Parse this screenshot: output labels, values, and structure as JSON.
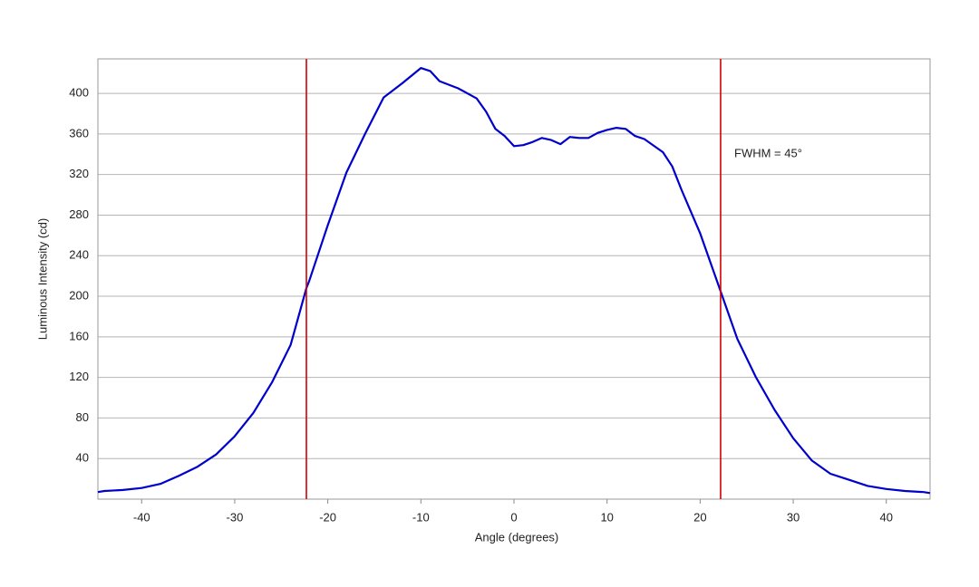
{
  "chart_data": {
    "type": "line",
    "x_label": "Angle (degrees)",
    "y_label": "Luminous Intensity (cd)",
    "x": [
      -44.7,
      -44,
      -42,
      -40,
      -38,
      -36,
      -34,
      -32,
      -30,
      -28,
      -26,
      -24,
      -22.3,
      -22,
      -20,
      -18,
      -16,
      -14,
      -12,
      -10,
      -9,
      -8,
      -6,
      -4,
      -3,
      -2,
      -1,
      0,
      1,
      2,
      3,
      4,
      5,
      6,
      7,
      8,
      9,
      10,
      11,
      12,
      13,
      14,
      16,
      17,
      18,
      20,
      22,
      24,
      26,
      28,
      30,
      32,
      34,
      36,
      38,
      40,
      42,
      44,
      44.7
    ],
    "series": [
      {
        "color": "#0000cc",
        "values": [
          7,
          8,
          9,
          11,
          15,
          23,
          32,
          44,
          62,
          85,
          115,
          152,
          208,
          215,
          270,
          322,
          360,
          396,
          410,
          425,
          422,
          412,
          405,
          395,
          382,
          365,
          358,
          348,
          349,
          352,
          356,
          354,
          350,
          357,
          356,
          356,
          361,
          364,
          366,
          365,
          358,
          355,
          342,
          328,
          305,
          262,
          210,
          158,
          120,
          88,
          60,
          38,
          25,
          19,
          13,
          10,
          8,
          7,
          6
        ]
      }
    ],
    "reference_lines": {
      "x": [
        -22.3,
        22.2
      ],
      "color": "#d40000"
    },
    "annotation": "FWHM = 45°",
    "xlim": [
      -44.7,
      44.7
    ],
    "xticks": [
      -40,
      -30,
      -20,
      -10,
      0,
      10,
      20,
      30,
      40
    ],
    "ylim": [
      0,
      434
    ],
    "yticks": [
      40,
      80,
      120,
      160,
      200,
      240,
      280,
      320,
      360,
      400
    ],
    "grid": true
  }
}
